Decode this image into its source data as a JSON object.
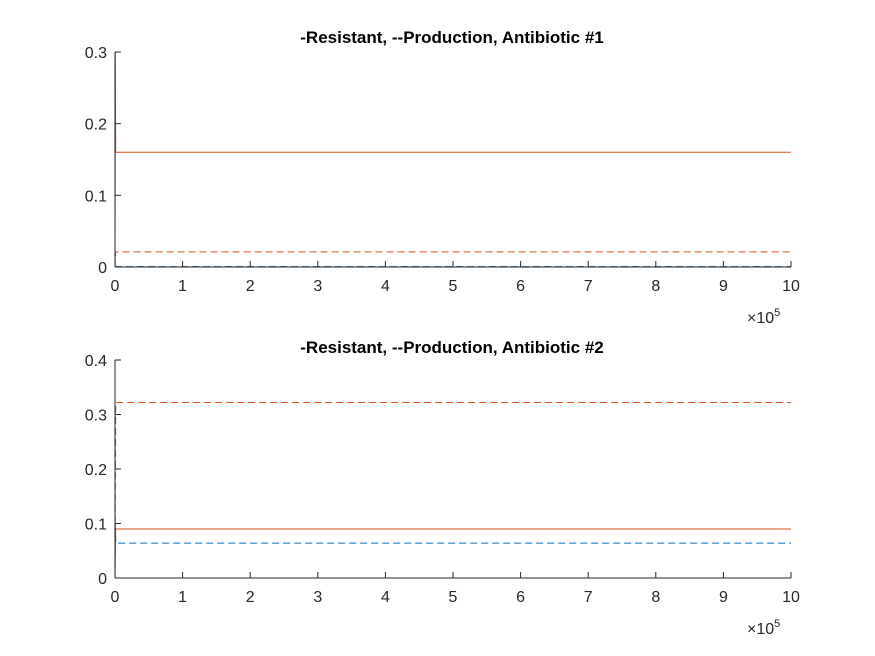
{
  "chart_data": [
    {
      "type": "line",
      "title": "-Resistant, --Production, Antibiotic #1",
      "xlabel": "",
      "ylabel": "",
      "xlim": [
        0,
        10
      ],
      "ylim": [
        0,
        0.3
      ],
      "x_ticks": [
        "0",
        "1",
        "2",
        "3",
        "4",
        "5",
        "6",
        "7",
        "8",
        "9",
        "10"
      ],
      "y_ticks": [
        "0",
        "0.1",
        "0.2",
        "0.3"
      ],
      "x_multiplier": "×10",
      "x_multiplier_exp": "5",
      "grid": false,
      "series": [
        {
          "style": "solid",
          "color": "#D95319",
          "x": [
            0,
            0.005,
            0.01,
            10
          ],
          "y": [
            0,
            0.3,
            0.16,
            0.16
          ]
        },
        {
          "style": "dashed",
          "color": "#D95319",
          "x": [
            0,
            0.01,
            10
          ],
          "y": [
            0,
            0.021,
            0.021
          ]
        },
        {
          "style": "solid",
          "color": "#0072BD",
          "x": [
            0,
            10
          ],
          "y": [
            0,
            0
          ]
        },
        {
          "style": "dashed",
          "color": "#0072BD",
          "x": [
            0,
            10
          ],
          "y": [
            0.0005,
            0.0005
          ]
        }
      ]
    },
    {
      "type": "line",
      "title": "-Resistant, --Production, Antibiotic #2",
      "xlabel": "",
      "ylabel": "",
      "xlim": [
        0,
        10
      ],
      "ylim": [
        0,
        0.4
      ],
      "x_ticks": [
        "0",
        "1",
        "2",
        "3",
        "4",
        "5",
        "6",
        "7",
        "8",
        "9",
        "10"
      ],
      "y_ticks": [
        "0",
        "0.1",
        "0.2",
        "0.3",
        "0.4"
      ],
      "x_multiplier": "×10",
      "x_multiplier_exp": "5",
      "grid": false,
      "series": [
        {
          "style": "dashed",
          "color": "#D95319",
          "x": [
            0,
            0.01,
            10
          ],
          "y": [
            0,
            0.322,
            0.322
          ]
        },
        {
          "style": "solid",
          "color": "#D95319",
          "x": [
            0,
            0.01,
            10
          ],
          "y": [
            0,
            0.09,
            0.09
          ]
        },
        {
          "style": "dashed",
          "color": "#0072BD",
          "x": [
            0,
            0.01,
            10
          ],
          "y": [
            0.12,
            0.064,
            0.064
          ]
        },
        {
          "style": "solid",
          "color": "#0072BD",
          "x": [
            0,
            10
          ],
          "y": [
            0,
            0
          ]
        }
      ]
    }
  ]
}
